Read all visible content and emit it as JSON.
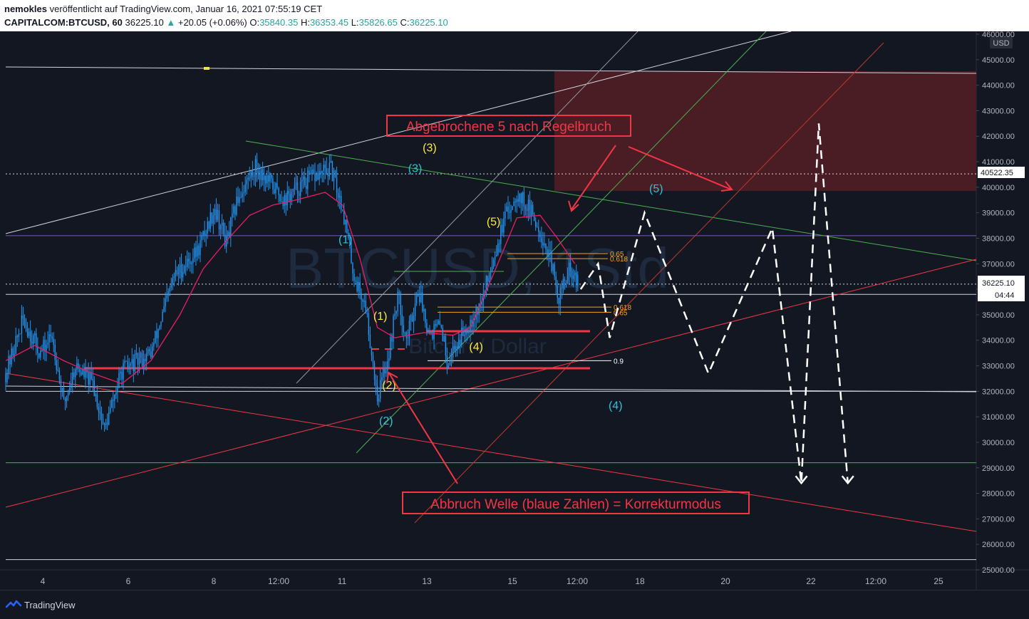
{
  "header": {
    "author": "nemokles",
    "published": "veröffentlicht auf TradingView.com, Januar 16, 2021 07:55:19 CET",
    "symbol": "CAPITALCOM:BTCUSD, 60",
    "last": "36225.10",
    "change": "+20.05 (+0.06%)",
    "open_label": "O:",
    "open": "35840.35",
    "high_label": "H:",
    "high": "36353.45",
    "low_label": "L:",
    "low": "35826.65",
    "close_label": "C:",
    "close": "36225.10"
  },
  "footer": {
    "brand": "TradingView"
  },
  "colors": {
    "background": "#131722",
    "candle": "#2196f3",
    "ma": "#e91e63",
    "annotation_red": "#f23645",
    "box": "#4a1c24",
    "cyan": "#26c6da",
    "yellow": "#ffeb3b",
    "fib": "#f7a21b"
  },
  "chart_data": {
    "type": "line",
    "symbol": "BTCUSD",
    "watermark": "BTCUSD, 1Std",
    "watermark_sub": "Bitcoin / Dollar",
    "currency": "USD",
    "ylim": [
      25000,
      46000
    ],
    "y_ticks": [
      "46000.00",
      "45000.00",
      "44000.00",
      "43000.00",
      "42000.00",
      "41000.00",
      "40000.00",
      "39000.00",
      "38000.00",
      "37000.00",
      "36000.00",
      "35000.00",
      "34000.00",
      "33000.00",
      "32000.00",
      "31000.00",
      "30000.00",
      "29000.00",
      "28000.00",
      "27000.00",
      "26000.00",
      "25000.00"
    ],
    "x_ticks": [
      "4",
      "6",
      "8",
      "12:00",
      "11",
      "13",
      "15",
      "12:00",
      "18",
      "20",
      "22",
      "12:00",
      "25"
    ],
    "price_label": "36225.10",
    "countdown": "04:44",
    "level_label": "40522.35",
    "price_anchors": [
      {
        "x": 0,
        "y": 32700
      },
      {
        "x": 3,
        "y": 34800
      },
      {
        "x": 6,
        "y": 33500
      },
      {
        "x": 8,
        "y": 34200
      },
      {
        "x": 10,
        "y": 31500
      },
      {
        "x": 12,
        "y": 33000
      },
      {
        "x": 15,
        "y": 32300
      },
      {
        "x": 17,
        "y": 30500
      },
      {
        "x": 20,
        "y": 32800
      },
      {
        "x": 25,
        "y": 33500
      },
      {
        "x": 29,
        "y": 36500
      },
      {
        "x": 33,
        "y": 37500
      },
      {
        "x": 36,
        "y": 39200
      },
      {
        "x": 38,
        "y": 37800
      },
      {
        "x": 40,
        "y": 39600
      },
      {
        "x": 43,
        "y": 40800
      },
      {
        "x": 45,
        "y": 40300
      },
      {
        "x": 48,
        "y": 39500
      },
      {
        "x": 52,
        "y": 40300
      },
      {
        "x": 56,
        "y": 40700
      },
      {
        "x": 58,
        "y": 39200
      },
      {
        "x": 60,
        "y": 36500
      },
      {
        "x": 62,
        "y": 35300
      },
      {
        "x": 64,
        "y": 31800
      },
      {
        "x": 66,
        "y": 33500
      },
      {
        "x": 67.5,
        "y": 35800
      },
      {
        "x": 69,
        "y": 34000
      },
      {
        "x": 71,
        "y": 36000
      },
      {
        "x": 73,
        "y": 34300
      },
      {
        "x": 75,
        "y": 34600
      },
      {
        "x": 76,
        "y": 33200
      },
      {
        "x": 78,
        "y": 34000
      },
      {
        "x": 80,
        "y": 34800
      },
      {
        "x": 82,
        "y": 35500
      },
      {
        "x": 84,
        "y": 37300
      },
      {
        "x": 86,
        "y": 38800
      },
      {
        "x": 88,
        "y": 39800
      },
      {
        "x": 90,
        "y": 39200
      },
      {
        "x": 92,
        "y": 38300
      },
      {
        "x": 94,
        "y": 37000
      },
      {
        "x": 95,
        "y": 35600
      },
      {
        "x": 97,
        "y": 36700
      },
      {
        "x": 98.5,
        "y": 36225
      }
    ],
    "projection": [
      {
        "x": 99,
        "y": 36000
      },
      {
        "x": 102,
        "y": 37000
      },
      {
        "x": 104,
        "y": 34100
      },
      {
        "x": 110,
        "y": 39000
      },
      {
        "x": 121,
        "y": 32700
      },
      {
        "x": 132,
        "y": 38400
      },
      {
        "x": 137,
        "y": 28400
      },
      {
        "x": 140,
        "y": 42500
      },
      {
        "x": 145,
        "y": 28400
      }
    ],
    "ma_anchors": [
      {
        "x": 0,
        "y": 33200
      },
      {
        "x": 5,
        "y": 33800
      },
      {
        "x": 10,
        "y": 33200
      },
      {
        "x": 15,
        "y": 32700
      },
      {
        "x": 20,
        "y": 32300
      },
      {
        "x": 25,
        "y": 33200
      },
      {
        "x": 30,
        "y": 35000
      },
      {
        "x": 34,
        "y": 36800
      },
      {
        "x": 38,
        "y": 37900
      },
      {
        "x": 42,
        "y": 38900
      },
      {
        "x": 46,
        "y": 39300
      },
      {
        "x": 50,
        "y": 39500
      },
      {
        "x": 55,
        "y": 39800
      },
      {
        "x": 58,
        "y": 39300
      },
      {
        "x": 61,
        "y": 37200
      },
      {
        "x": 64,
        "y": 34500
      },
      {
        "x": 67,
        "y": 34100
      },
      {
        "x": 72,
        "y": 34300
      },
      {
        "x": 77,
        "y": 34200
      },
      {
        "x": 80,
        "y": 34500
      },
      {
        "x": 84,
        "y": 36600
      },
      {
        "x": 88,
        "y": 38800
      },
      {
        "x": 92,
        "y": 38900
      },
      {
        "x": 95,
        "y": 38000
      },
      {
        "x": 98,
        "y": 37000
      }
    ],
    "horizontal_levels": [
      32000,
      25400,
      29200,
      38100,
      35800,
      36200
    ],
    "fib_labels": [
      {
        "label": "0.65",
        "y": 37400
      },
      {
        "label": "0.618",
        "y": 37200
      },
      {
        "label": "0.618",
        "y": 35300
      },
      {
        "label": "0.65",
        "y": 35100
      },
      {
        "label": "0.9",
        "y": 33200
      }
    ],
    "wave_labels": [
      {
        "label": "(3)",
        "color": "yellow",
        "x": 73,
        "y": 41400
      },
      {
        "label": "(3)",
        "color": "cyan",
        "x": 70.5,
        "y": 40600
      },
      {
        "label": "(5)",
        "color": "yellow",
        "x": 84,
        "y": 38500
      },
      {
        "label": "(1)",
        "color": "cyan",
        "x": 58.5,
        "y": 37800
      },
      {
        "label": "(1)",
        "color": "yellow",
        "x": 64.5,
        "y": 34800
      },
      {
        "label": "(4)",
        "color": "yellow",
        "x": 81,
        "y": 33600
      },
      {
        "label": "(2)",
        "color": "yellow",
        "x": 66,
        "y": 32100
      },
      {
        "label": "(2)",
        "color": "cyan",
        "x": 65.5,
        "y": 30700
      },
      {
        "label": "(5)",
        "color": "cyan",
        "x": 112,
        "y": 39800
      },
      {
        "label": "(4)",
        "color": "cyan",
        "x": 105,
        "y": 31300
      }
    ],
    "annotations": [
      {
        "text": "Abgebrochene 5 nach Regelbruch"
      },
      {
        "text": "Abbruch Welle (blaue Zahlen) = Korrekturmodus"
      }
    ]
  }
}
